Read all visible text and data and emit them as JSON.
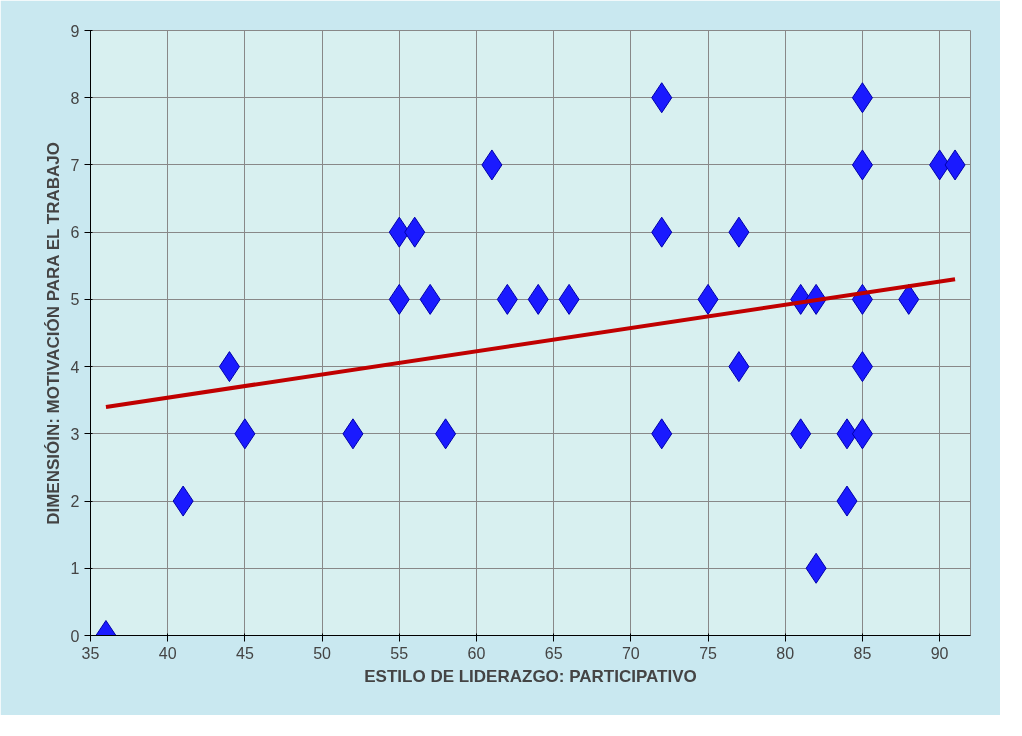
{
  "chart_data": {
    "type": "scatter",
    "xlabel": "ESTILO DE LIDERAZGO: PARTICIPATIVO",
    "ylabel": "DIMENSIÓIN: MOTIVACIÓN PARA EL TRABAJO",
    "xlim": [
      35,
      92
    ],
    "ylim": [
      0,
      9
    ],
    "xticks": [
      35,
      40,
      45,
      50,
      55,
      60,
      65,
      70,
      75,
      80,
      85,
      90
    ],
    "yticks": [
      0,
      1,
      2,
      3,
      4,
      5,
      6,
      7,
      8,
      9
    ],
    "grid": true,
    "marker": "diamond",
    "series": [
      {
        "color": "#1a1aff",
        "x": [
          36,
          41,
          44,
          45,
          52,
          55,
          55,
          56,
          57,
          58,
          61,
          62,
          64,
          66,
          72,
          72,
          72,
          75,
          77,
          77,
          81,
          82,
          81,
          82,
          84,
          84,
          85,
          85,
          85,
          85,
          85,
          88,
          90,
          91
        ],
        "values": [
          0,
          2,
          4,
          3,
          3,
          6,
          5,
          6,
          5,
          3,
          7,
          5,
          5,
          5,
          8,
          6,
          3,
          5,
          6,
          4,
          5,
          5,
          3,
          1,
          3,
          2,
          8,
          7,
          5,
          4,
          3,
          5,
          7,
          7
        ]
      },
      {
        "type": "line",
        "color": "#c00000",
        "marker": "none",
        "x": [
          36,
          91
        ],
        "values": [
          3.4,
          5.3
        ]
      }
    ]
  }
}
